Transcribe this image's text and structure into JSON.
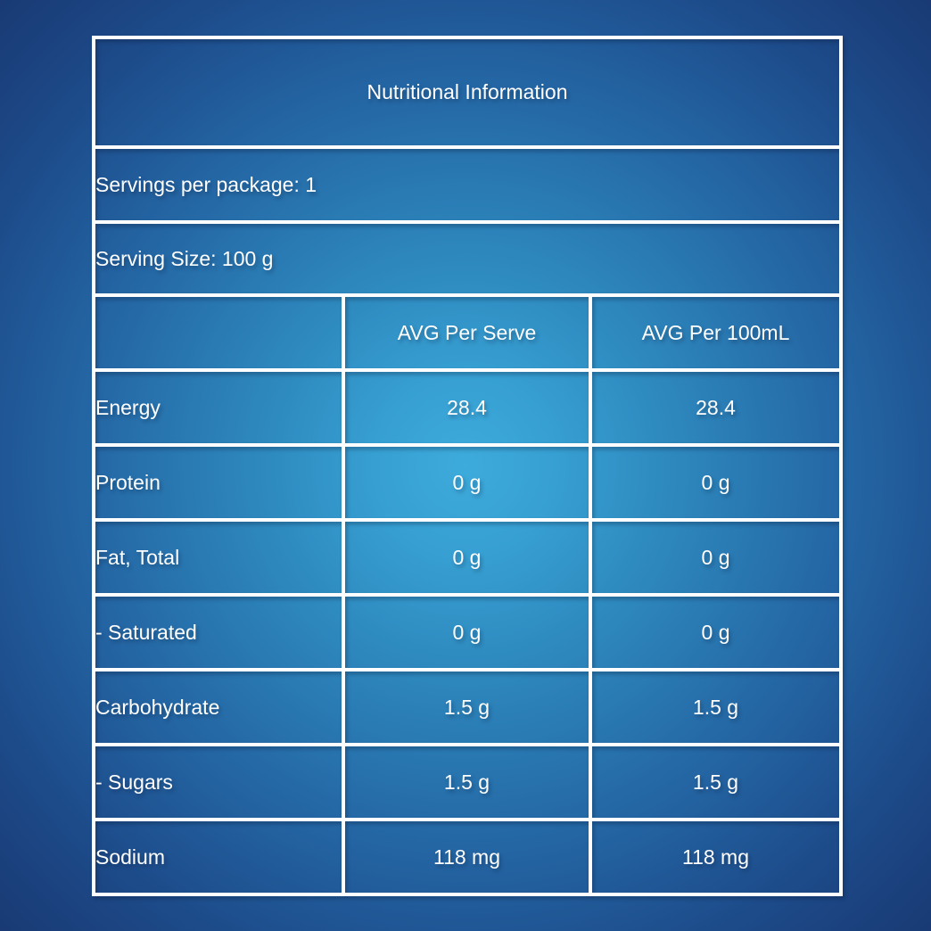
{
  "title": "Nutritional Information",
  "info_rows": [
    "Servings per package: 1",
    "Serving Size: 100 g"
  ],
  "table": {
    "columns": [
      "",
      "AVG Per Serve",
      "AVG Per 100mL"
    ],
    "rows": [
      [
        "Energy",
        "28.4",
        "28.4"
      ],
      [
        "Protein",
        "0 g",
        "0 g"
      ],
      [
        "Fat, Total",
        "0 g",
        "0 g"
      ],
      [
        "- Saturated",
        "0 g",
        "0 g"
      ],
      [
        "Carbohydrate",
        "1.5 g",
        "1.5 g"
      ],
      [
        "- Sugars",
        "1.5 g",
        "1.5 g"
      ],
      [
        "Sodium",
        "118 mg",
        "118 mg"
      ]
    ]
  },
  "colors": {
    "background_center": "#3dabdc",
    "background_edge": "#193a74",
    "grid_border": "#ffffff",
    "text": "#ffffff"
  }
}
